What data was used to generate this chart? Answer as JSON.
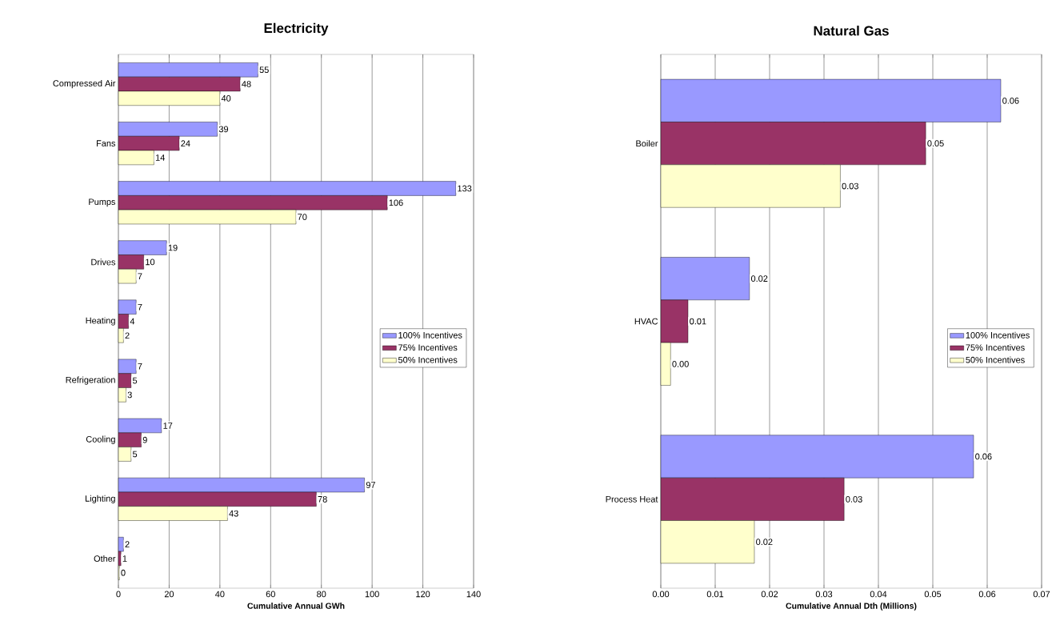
{
  "chart_data": [
    {
      "type": "bar",
      "orientation": "horizontal",
      "title": "Electricity",
      "xlabel": "Cumulative Annual GWh",
      "categories": [
        "Compressed Air",
        "Fans",
        "Pumps",
        "Drives",
        "Heating",
        "Refrigeration",
        "Cooling",
        "Lighting",
        "Other"
      ],
      "series": [
        {
          "name": "100% Incentives",
          "color": "#9999ff",
          "values": [
            55,
            39,
            133,
            19,
            7,
            7,
            17,
            97,
            2
          ],
          "value_labels": [
            "55",
            "39",
            "133",
            "19",
            "7",
            "7",
            "17",
            "97",
            "2"
          ]
        },
        {
          "name": "75% Incentives",
          "color": "#993366",
          "values": [
            48,
            24,
            106,
            10,
            4,
            5,
            9,
            78,
            1
          ],
          "value_labels": [
            "48",
            "24",
            "106",
            "10",
            "4",
            "5",
            "9",
            "78",
            "1"
          ]
        },
        {
          "name": "50% Incentives",
          "color": "#ffffcc",
          "values": [
            40,
            14,
            70,
            7,
            2,
            3,
            5,
            43,
            0.4
          ],
          "value_labels": [
            "40",
            "14",
            "70",
            "7",
            "2",
            "3",
            "5",
            "43",
            "0"
          ]
        }
      ],
      "xlim": [
        0,
        140
      ],
      "xticks": [
        0,
        20,
        40,
        60,
        80,
        100,
        120,
        140
      ],
      "grid": "x",
      "legend": "right"
    },
    {
      "type": "bar",
      "orientation": "horizontal",
      "title": "Natural Gas",
      "xlabel": "Cumulative Annual Dth (Millions)",
      "categories": [
        "Boiler",
        "HVAC",
        "Process Heat"
      ],
      "series": [
        {
          "name": "100% Incentives",
          "color": "#9999ff",
          "values": [
            0.0625,
            0.0163,
            0.0575
          ],
          "value_labels": [
            "0.06",
            "0.02",
            "0.06"
          ]
        },
        {
          "name": "75% Incentives",
          "color": "#993366",
          "values": [
            0.0487,
            0.005,
            0.0337
          ],
          "value_labels": [
            "0.05",
            "0.01",
            "0.03"
          ]
        },
        {
          "name": "50% Incentives",
          "color": "#ffffcc",
          "values": [
            0.033,
            0.0018,
            0.0172
          ],
          "value_labels": [
            "0.03",
            "0.00",
            "0.02"
          ]
        }
      ],
      "xlim": [
        0,
        0.07
      ],
      "xticks": [
        {
          "value": 0,
          "label": "0.00"
        },
        {
          "value": 0.01,
          "label": "0.01"
        },
        {
          "value": 0.02,
          "label": "0.02"
        },
        {
          "value": 0.03,
          "label": "0.03"
        },
        {
          "value": 0.04,
          "label": "0.04"
        },
        {
          "value": 0.05,
          "label": "0.05"
        },
        {
          "value": 0.06,
          "label": "0.06"
        },
        {
          "value": 0.07,
          "label": "0.07"
        }
      ],
      "grid": "x",
      "legend": "right"
    }
  ]
}
